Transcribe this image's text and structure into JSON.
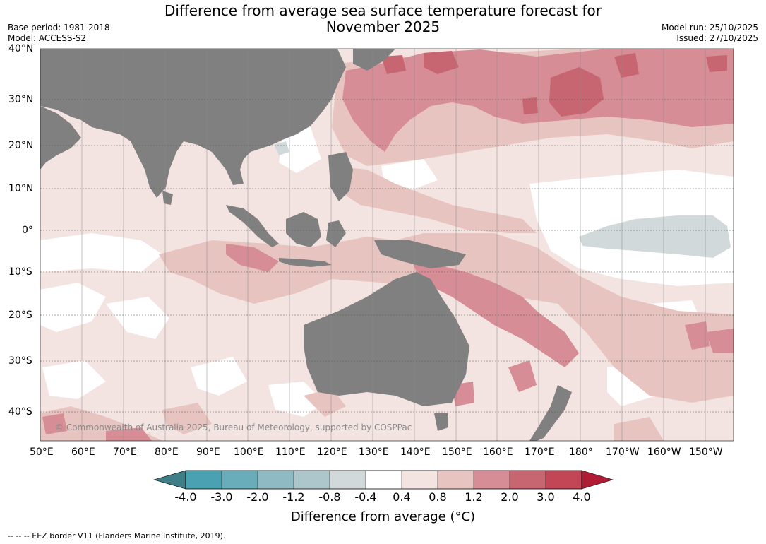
{
  "title": "Difference from average sea surface temperature forecast for November 2025",
  "title_line1": "Difference from average sea surface temperature forecast for",
  "title_line2": "November 2025",
  "meta_left": [
    "Base period: 1981-2018",
    "Model: ACCESS-S2"
  ],
  "meta_right": [
    "Model run: 25/10/2025",
    "Issued: 27/10/2025"
  ],
  "copyright": "© Commonwealth of Australia 2025, Bureau of Meteorology, supported by COSPPac",
  "lat_labels": [
    "40°N",
    "30°N",
    "20°N",
    "10°N",
    "0°",
    "10°S",
    "20°S",
    "30°S",
    "40°S"
  ],
  "lon_labels": [
    "50°E",
    "60°E",
    "70°E",
    "80°E",
    "90°E",
    "100°E",
    "110°E",
    "120°E",
    "130°E",
    "140°E",
    "150°E",
    "160°E",
    "170°E",
    "180°",
    "170°W",
    "160°W",
    "150°W"
  ],
  "colorbar": {
    "ticks": [
      "-4.0",
      "-3.0",
      "-2.0",
      "-1.2",
      "-0.8",
      "-0.4",
      "0.4",
      "0.8",
      "1.2",
      "2.0",
      "3.0",
      "4.0"
    ],
    "colors": [
      "#3e7f87",
      "#4aa1b2",
      "#6aadba",
      "#8fbac4",
      "#adc6cb",
      "#d1d9db",
      "#ffffff",
      "#f3e4e2",
      "#e7c4c0",
      "#d68d95",
      "#c76570",
      "#c24655",
      "#b01c33"
    ],
    "label": "Difference from average (°C)"
  },
  "footer": "--  --  -- EEZ border V11 (Flanders Marine Institute, 2019).",
  "colors": {
    "land": "#808080",
    "anomaly_0_4_0_8": "#f3e4e2",
    "anomaly_0_8_1_2": "#e7c4c0",
    "anomaly_1_2_2_0": "#d68d95",
    "anomaly_2_0_3_0": "#c76570",
    "anomaly_neg_0_4": "#d1d9db"
  }
}
